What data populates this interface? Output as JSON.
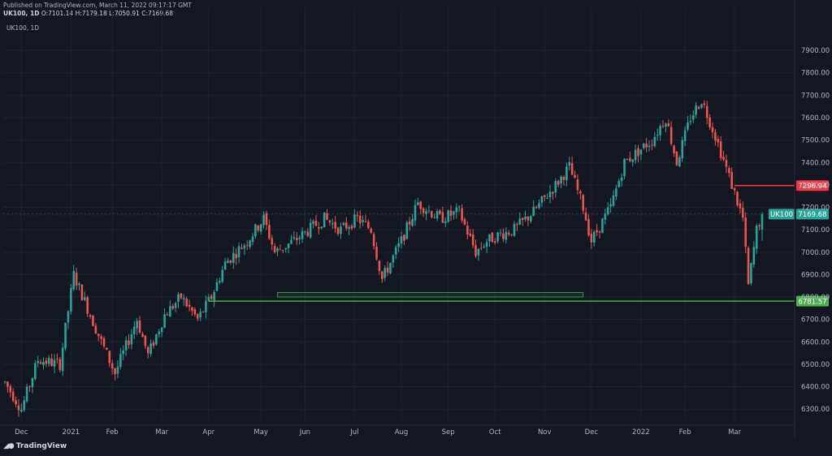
{
  "header": {
    "published": "Published on TradingView.com, March 11, 2022 09:17:17 GMT",
    "symbol_interval": "UK100, 1D",
    "open": "O:7101.14",
    "high": "H:7179.18",
    "low": "L:7050.91",
    "close": "C:7169.68"
  },
  "pane": {
    "label": "UK100, 1D"
  },
  "brand": {
    "name": "TradingView"
  },
  "colors": {
    "background": "#131722",
    "grid": "#1f2330",
    "up": "#26a69a",
    "down": "#ef5350",
    "support": "#4caf50",
    "resistance": "#f23645",
    "last_price": "#26a69a"
  },
  "chart_data": {
    "type": "candlestick",
    "title": "",
    "ylim": [
      6250,
      7980
    ],
    "y_ticks": [
      6300,
      6400,
      6500,
      6600,
      6700,
      6800,
      6900,
      7000,
      7100,
      7200,
      7300,
      7400,
      7500,
      7600,
      7700,
      7800,
      7900
    ],
    "y_tick_labels": [
      "6300.00",
      "6400.00",
      "6500.00",
      "6600.00",
      "6700.00",
      "6800.00",
      "6900.00",
      "7000.00",
      "7100.00",
      "7200.00",
      "7300.00",
      "7400.00",
      "7500.00",
      "7600.00",
      "7700.00",
      "7800.00",
      "7900.00"
    ],
    "x_labels": [
      "Dec",
      "2021",
      "Feb",
      "Mar",
      "Apr",
      "May",
      "Jun",
      "Jul",
      "Aug",
      "Sep",
      "Oct",
      "Nov",
      "Dec",
      "2022",
      "Feb",
      "Mar"
    ],
    "x_label_index": [
      6,
      24,
      39,
      57,
      74,
      93,
      109,
      127,
      144,
      161,
      178,
      196,
      213,
      231,
      247,
      265
    ],
    "n_bars": 276,
    "trend": [
      [
        0,
        6420
      ],
      [
        6,
        6300
      ],
      [
        12,
        6520
      ],
      [
        20,
        6500
      ],
      [
        25,
        6900
      ],
      [
        35,
        6600
      ],
      [
        40,
        6460
      ],
      [
        48,
        6700
      ],
      [
        52,
        6540
      ],
      [
        58,
        6720
      ],
      [
        64,
        6800
      ],
      [
        70,
        6700
      ],
      [
        75,
        6800
      ],
      [
        80,
        6950
      ],
      [
        88,
        7050
      ],
      [
        94,
        7150
      ],
      [
        98,
        7000
      ],
      [
        105,
        7050
      ],
      [
        116,
        7150
      ],
      [
        122,
        7100
      ],
      [
        128,
        7150
      ],
      [
        133,
        7100
      ],
      [
        137,
        6880
      ],
      [
        144,
        7050
      ],
      [
        150,
        7220
      ],
      [
        158,
        7150
      ],
      [
        165,
        7180
      ],
      [
        171,
        7000
      ],
      [
        175,
        7050
      ],
      [
        180,
        7080
      ],
      [
        185,
        7100
      ],
      [
        192,
        7180
      ],
      [
        200,
        7300
      ],
      [
        205,
        7380
      ],
      [
        210,
        7200
      ],
      [
        213,
        7050
      ],
      [
        220,
        7200
      ],
      [
        225,
        7400
      ],
      [
        235,
        7500
      ],
      [
        240,
        7600
      ],
      [
        244,
        7400
      ],
      [
        249,
        7600
      ],
      [
        253,
        7680
      ],
      [
        258,
        7520
      ],
      [
        264,
        7300
      ],
      [
        268,
        7150
      ],
      [
        270,
        6850
      ],
      [
        273,
        7100
      ],
      [
        275,
        7169.68
      ]
    ],
    "horizontal_levels": [
      {
        "name": "resistance",
        "value": 7296.94,
        "label": "7296.94",
        "from_index": 265
      },
      {
        "name": "support",
        "value": 6781.57,
        "label": "6781.57",
        "from_index": 74
      }
    ],
    "zone": {
      "from_index": 99,
      "to_index": 210,
      "low": 6800,
      "high": 6820
    },
    "last_price": {
      "symbol": "UK100",
      "value": 7169.68,
      "label": "7169.68"
    }
  }
}
